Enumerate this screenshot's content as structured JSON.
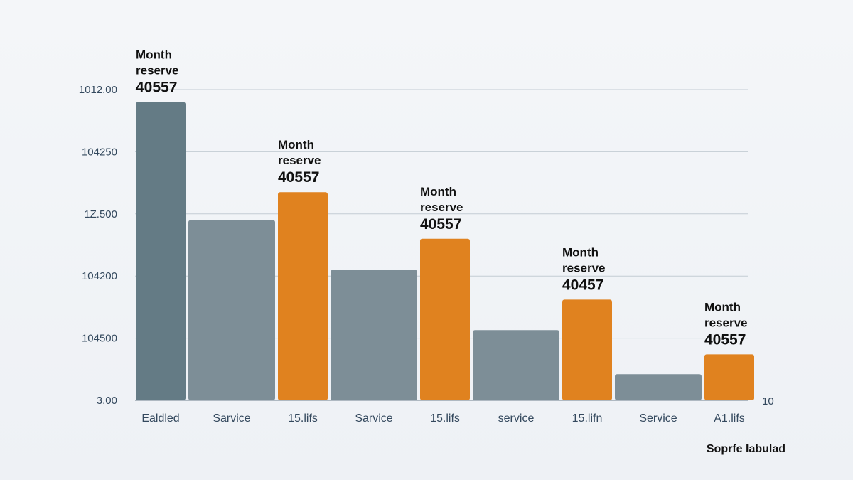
{
  "chart_data": {
    "type": "bar",
    "title": "",
    "xlabel": "",
    "ylabel": "",
    "ylim": [
      0,
      5
    ],
    "grid": true,
    "y_ticks": [
      {
        "label": "3.00",
        "value": 0
      },
      {
        "label": "104500",
        "value": 1
      },
      {
        "label": "104200",
        "value": 2
      },
      {
        "label": "1Z.500",
        "value": 3
      },
      {
        "label": "104250",
        "value": 4
      },
      {
        "label": "1012.00",
        "value": 5
      }
    ],
    "right_axis_label": "10",
    "footnote": "Soprfe labulad",
    "categories": [
      "Ealdled",
      "Sarvice",
      "15.lifs",
      "Sarvice",
      "15.lifs",
      "service",
      "15.lifn",
      "Service",
      "A1.lifs"
    ],
    "values": [
      4.8,
      2.9,
      3.35,
      2.1,
      2.6,
      1.13,
      1.62,
      0.42,
      0.74
    ],
    "colors": [
      "#647b85",
      "#7d8e97",
      "#e0821f",
      "#7d8e97",
      "#e0821f",
      "#7d8e97",
      "#e0821f",
      "#7d8e97",
      "#e0821f"
    ],
    "data_labels": [
      {
        "index": 0,
        "lines": [
          "Month",
          "reserve"
        ],
        "value": "40557"
      },
      {
        "index": 2,
        "lines": [
          "Month",
          "reserve"
        ],
        "value": "40557"
      },
      {
        "index": 4,
        "lines": [
          "Month",
          "reserve"
        ],
        "value": "40557"
      },
      {
        "index": 6,
        "lines": [
          "Month",
          "reserve"
        ],
        "value": "40457"
      },
      {
        "index": 8,
        "lines": [
          "Month",
          "reserve"
        ],
        "value": "40557"
      }
    ]
  }
}
